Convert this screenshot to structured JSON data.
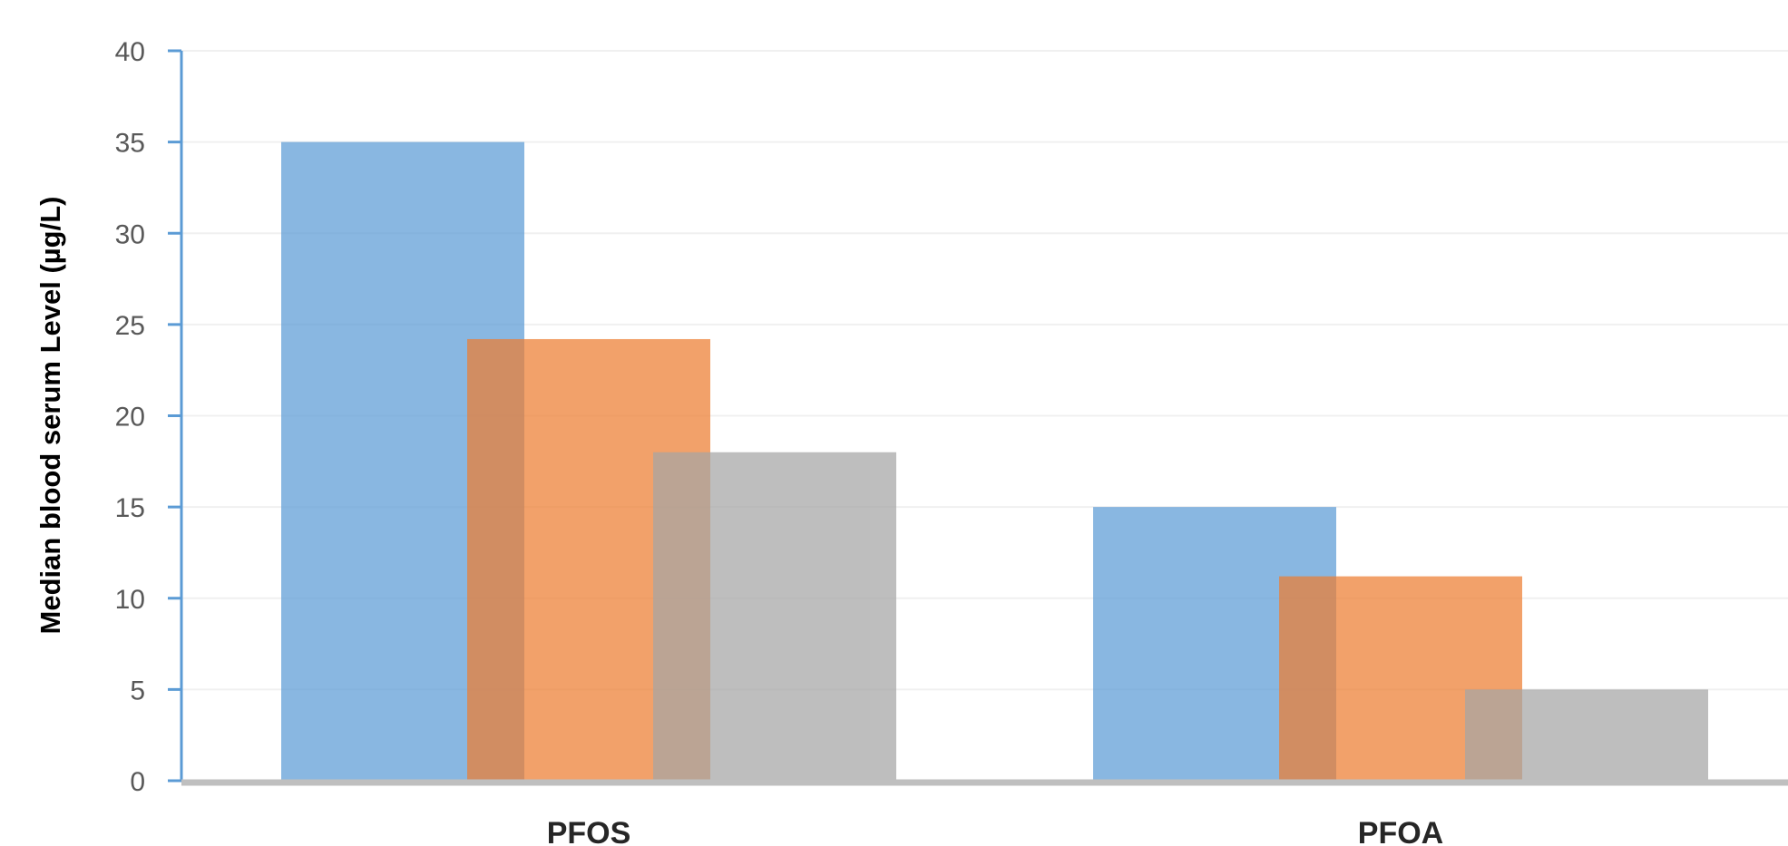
{
  "chart_data": {
    "type": "bar",
    "title": "",
    "xlabel": "",
    "ylabel": "Median blood serum Level (µg/L)",
    "categories": [
      "PFOS",
      "PFOA"
    ],
    "series": [
      {
        "values": [
          35,
          15
        ],
        "color": "#5b9bd5"
      },
      {
        "values": [
          24.2,
          11.2
        ],
        "color": "#ed7d31"
      },
      {
        "values": [
          18,
          5
        ],
        "color": "#a5a5a5"
      }
    ],
    "ylim": [
      0,
      40
    ],
    "yticks": [
      0,
      5,
      10,
      15,
      20,
      25,
      30,
      35,
      40
    ],
    "grid": true,
    "legend": "none"
  }
}
